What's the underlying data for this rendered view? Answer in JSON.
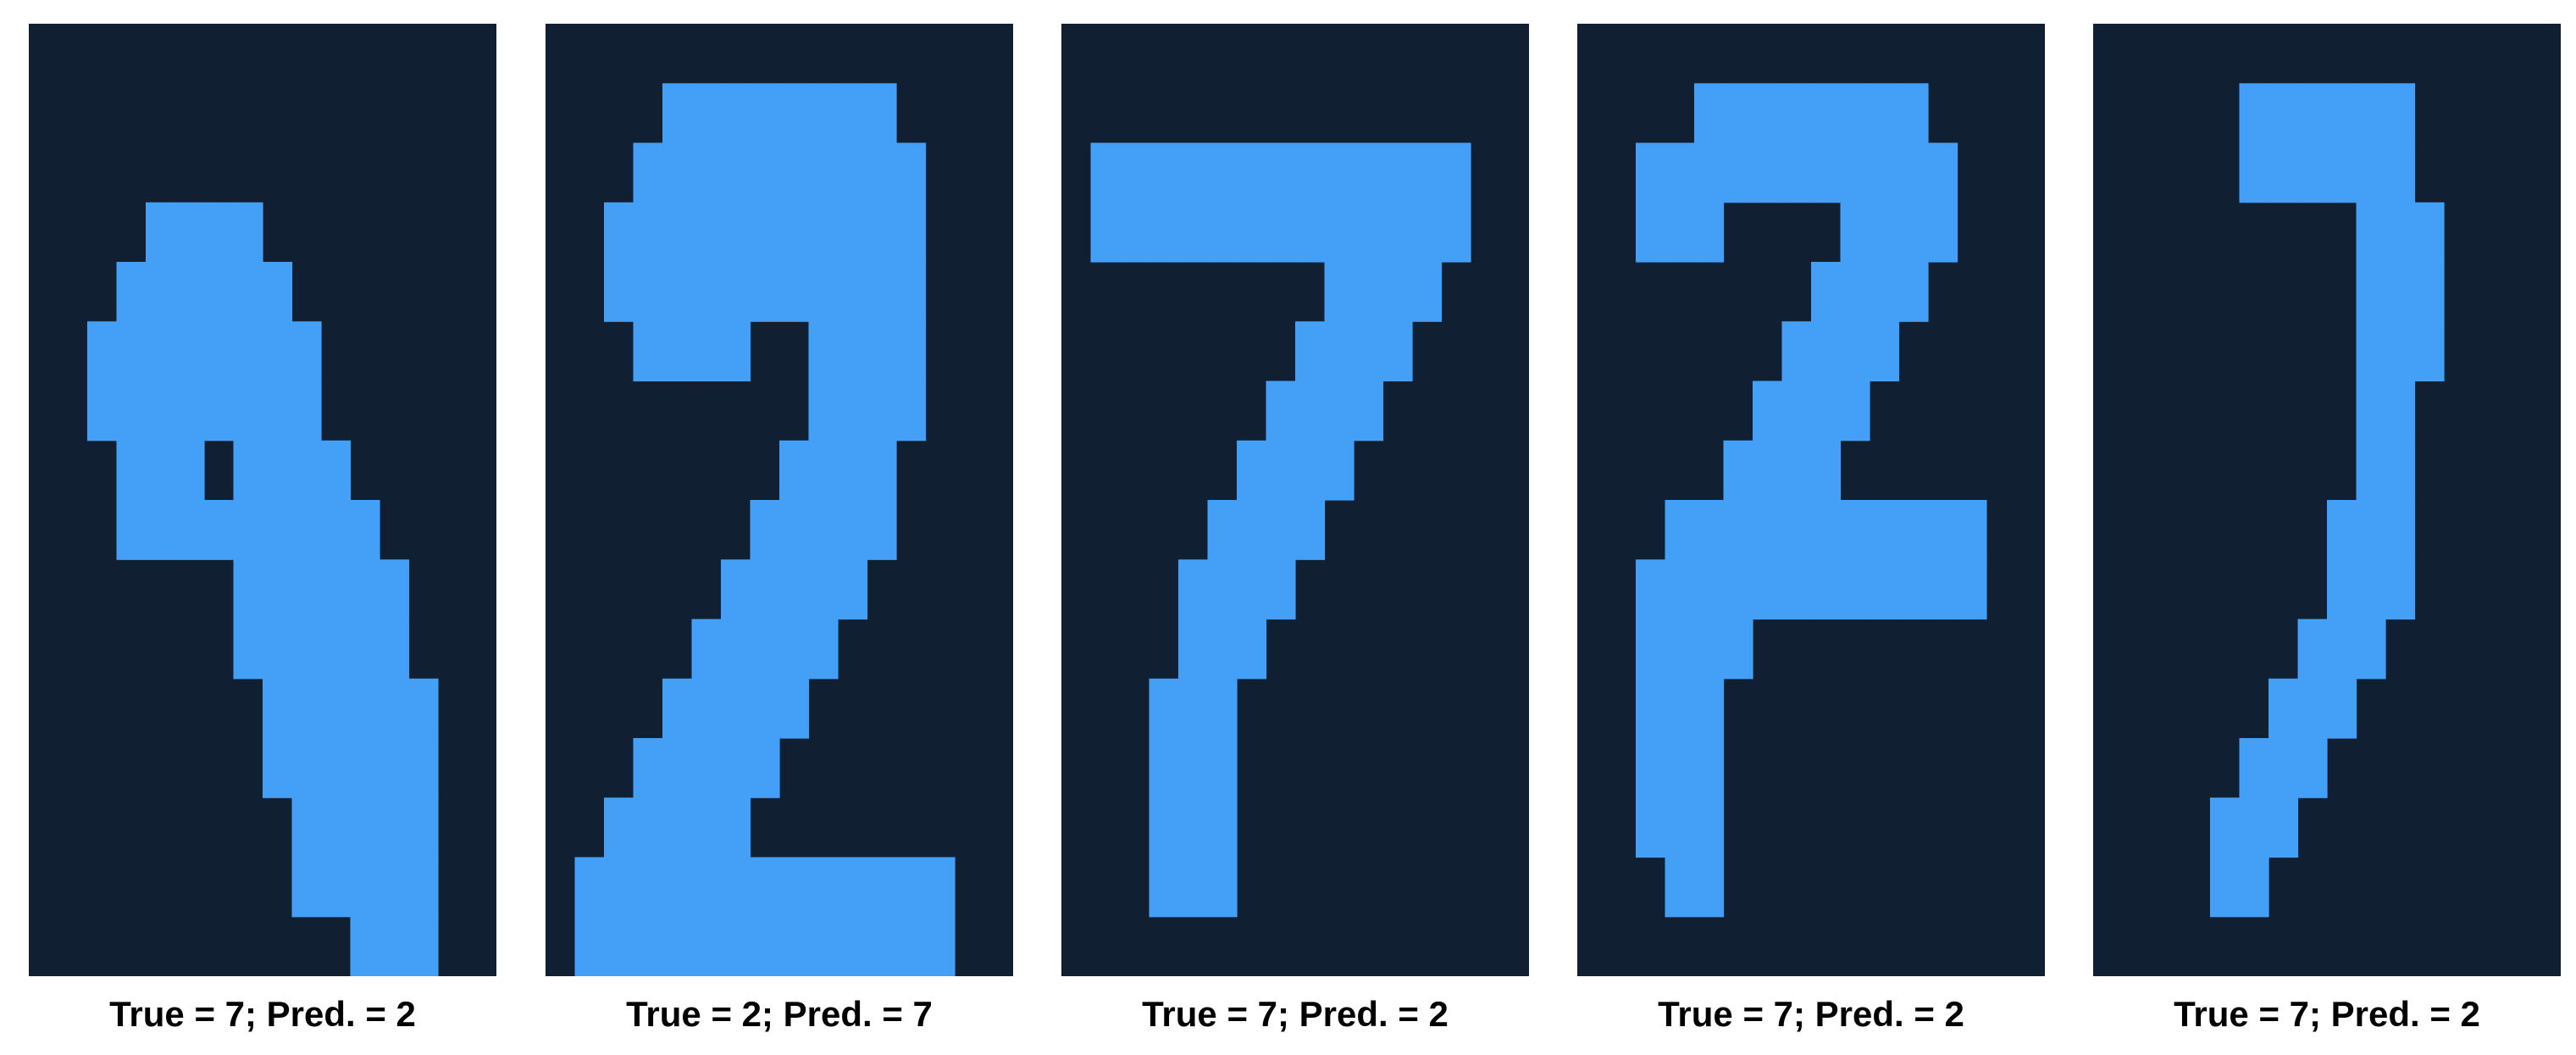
{
  "colors": {
    "dark": "#111f33",
    "bright": "#44a0f6",
    "background": "#ffffff"
  },
  "panels": [
    {
      "caption": "True = 7; Pred. = 2",
      "pixels": [
        "0000000000000000",
        "0000000000000000",
        "0000000000000000",
        "0000111100000000",
        "0001111110000000",
        "0011111111000000",
        "0011111111000000",
        "0001110111100000",
        "0001111111110000",
        "0000000111111000",
        "0000000111111000",
        "0000000011111100",
        "0000000011111100",
        "0000000001111100",
        "0000000001111100",
        "0000000000011100"
      ]
    },
    {
      "caption": "True = 2; Pred. = 7",
      "pixels": [
        "0000000000000000",
        "0000111111110000",
        "0001111111111000",
        "0011111111111000",
        "0011111111111000",
        "0001111001111000",
        "0000000001111000",
        "0000000011110000",
        "0000000111110000",
        "0000001111100000",
        "0000011111000000",
        "0000111110000000",
        "0001111100000000",
        "0011111000000000",
        "0111111111111100",
        "0111111111111100"
      ]
    },
    {
      "caption": "True = 7; Pred. = 2",
      "pixels": [
        "0000000000000000",
        "0000000000000000",
        "0111111111111100",
        "0111111111111100",
        "0000000001111000",
        "0000000011110000",
        "0000000111100000",
        "0000001111000000",
        "0000011110000000",
        "0000111100000000",
        "0000111000000000",
        "0001110000000000",
        "0001110000000000",
        "0001110000000000",
        "0001110000000000",
        "0000000000000000"
      ]
    },
    {
      "caption": "True = 7; Pred. = 2",
      "pixels": [
        "0000000000000000",
        "0000111111110000",
        "0011111111111000",
        "0011100001111000",
        "0000000011110000",
        "0000000111100000",
        "0000001111000000",
        "0000011110000000",
        "0001111111111100",
        "0011111111111100",
        "0011110000000000",
        "0011100000000000",
        "0011100000000000",
        "0011100000000000",
        "0001100000000000",
        "0000000000000000"
      ]
    },
    {
      "caption": "True = 7; Pred. = 2",
      "pixels": [
        "0000000000000000",
        "0000011111100000",
        "0000011111100000",
        "0000000001110000",
        "0000000001110000",
        "0000000001110000",
        "0000000001100000",
        "0000000001100000",
        "0000000011100000",
        "0000000011100000",
        "0000000111000000",
        "0000001110000000",
        "0000011100000000",
        "0000111000000000",
        "0000110000000000",
        "0000000000000000"
      ]
    }
  ]
}
